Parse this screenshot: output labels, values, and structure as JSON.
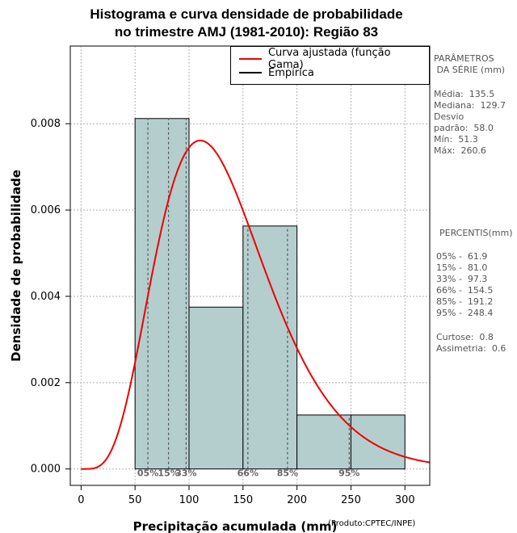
{
  "chart_data": {
    "type": "histogram",
    "title_line1": "Histograma e curva densidade de probabilidade",
    "title_line2": "no trimestre AMJ (1981-2010): Região 83",
    "xlabel": "Precipitação acumulada (mm)",
    "xlabel_note": "(Produto:CPTEC/INPE)",
    "ylabel": "Densidade de probabilidade",
    "xlim": [
      -10,
      323
    ],
    "ylim": [
      -0.00038,
      0.0098
    ],
    "x_ticks": [
      0,
      50,
      100,
      150,
      200,
      250,
      300
    ],
    "x_tick_labels": [
      "0",
      "50",
      "100",
      "150",
      "200",
      "250",
      "300"
    ],
    "y_ticks": [
      0.0,
      0.002,
      0.004,
      0.006,
      0.008
    ],
    "y_tick_labels": [
      "0.000",
      "0.002",
      "0.004",
      "0.006",
      "0.008"
    ],
    "bins": [
      {
        "x0": 50,
        "x1": 100,
        "density": 0.00812
      },
      {
        "x0": 100,
        "x1": 150,
        "density": 0.00375
      },
      {
        "x0": 150,
        "x1": 200,
        "density": 0.00563
      },
      {
        "x0": 200,
        "x1": 250,
        "density": 0.00125
      },
      {
        "x0": 250,
        "x1": 300,
        "density": 0.00125
      }
    ],
    "gamma_fit": {
      "shape": 5.6,
      "scale": 24.0
    },
    "percentile_lines": [
      {
        "label": "05%",
        "x": 61.9
      },
      {
        "label": "15%",
        "x": 81.0
      },
      {
        "label": "33%",
        "x": 97.3
      },
      {
        "label": "66%",
        "x": 154.5
      },
      {
        "label": "85%",
        "x": 191.2
      },
      {
        "label": "95%",
        "x": 248.4
      }
    ],
    "legend": [
      {
        "label": "Curva ajustada (função Gama)",
        "color": "#ee0000"
      },
      {
        "label": "Empírica",
        "color": "#000000"
      }
    ],
    "colors": {
      "bar_fill": "#b4cece",
      "curve": "#ee0000",
      "grid": "#b0b0b0"
    }
  },
  "stats_panel": {
    "header1": "PARÂMETROS",
    "header2": " DA SÉRIE (mm)",
    "lines": [
      "Média:  135.5",
      "Mediana:  129.7",
      "Desvio",
      "padrão:  58.0",
      "Mín:  51.3",
      "Máx:  260.6"
    ]
  },
  "percentis_panel": {
    "header": "PERCENTIS(mm)",
    "lines": [
      "05% -  61.9",
      "15% -  81.0",
      "33% -  97.3",
      "66% -  154.5",
      "85% -  191.2",
      "95% -  248.4"
    ],
    "extra": [
      "Curtose:  0.8",
      "Assimetria:  0.6"
    ]
  }
}
